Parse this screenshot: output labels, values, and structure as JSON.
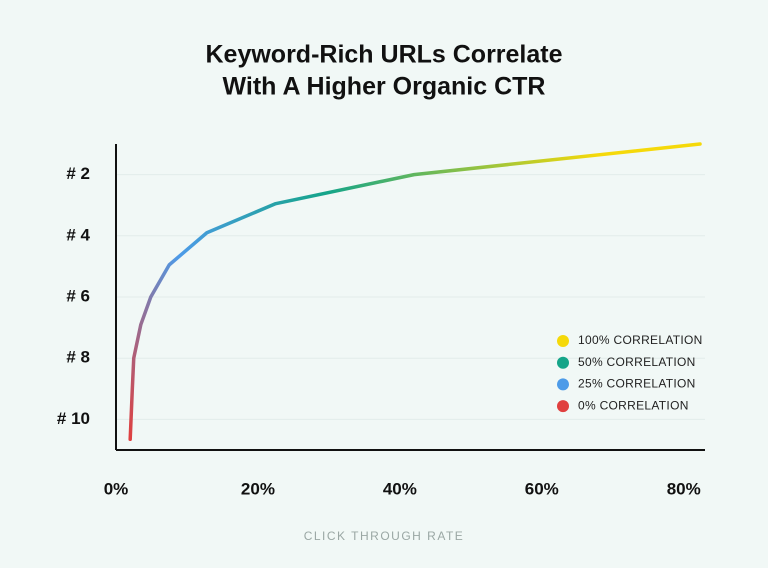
{
  "chart_data": {
    "type": "line",
    "title": [
      "Keyword-Rich URLs Correlate",
      "With A Higher Organic CTR"
    ],
    "x_label": "CLICK THROUGH RATE",
    "x": [
      2.0,
      2.3,
      2.5,
      3.5,
      4.9,
      7.5,
      12.8,
      22.5,
      42,
      82.3
    ],
    "values": [
      10.65,
      9.0,
      8.0,
      6.9,
      6.0,
      4.95,
      3.9,
      2.95,
      2.0,
      1.0
    ],
    "xlim": [
      0,
      83
    ],
    "xticks": [
      {
        "value": 0,
        "label": "0%"
      },
      {
        "value": 20,
        "label": "20%"
      },
      {
        "value": 40,
        "label": "40%"
      },
      {
        "value": 60,
        "label": "60%"
      },
      {
        "value": 80,
        "label": "80%"
      }
    ],
    "ylim": [
      11,
      1
    ],
    "yticks": [
      {
        "value": 2,
        "label": "# 2"
      },
      {
        "value": 4,
        "label": "# 4"
      },
      {
        "value": 6,
        "label": "# 6"
      },
      {
        "value": 8,
        "label": "# 8"
      },
      {
        "value": 10,
        "label": "# 10"
      }
    ],
    "grid": true,
    "legend": [
      {
        "label": "100% CORRELATION",
        "color": "#f5d90a"
      },
      {
        "label": "50% CORRELATION",
        "color": "#15a589"
      },
      {
        "label": "25% CORRELATION",
        "color": "#4d9be8"
      },
      {
        "label": "0% CORRELATION",
        "color": "#e0403f"
      }
    ]
  }
}
